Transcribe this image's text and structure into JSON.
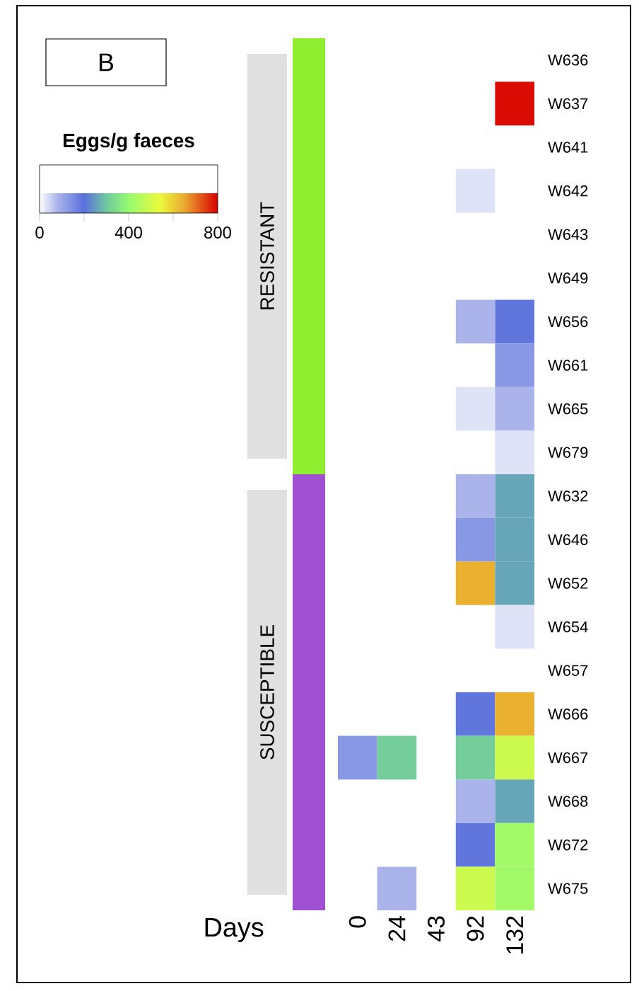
{
  "chart_data": {
    "type": "heatmap",
    "title": "B",
    "clabel": "Eggs/g faeces",
    "xlabel": "Days",
    "categories": [
      "0",
      "24",
      "43",
      "92",
      "132"
    ],
    "y_categories": [
      "W636",
      "W637",
      "W641",
      "W642",
      "W643",
      "W649",
      "W656",
      "W661",
      "W665",
      "W679",
      "W632",
      "W646",
      "W652",
      "W654",
      "W657",
      "W666",
      "W667",
      "W668",
      "W672",
      "W675"
    ],
    "cells": [
      [
        null,
        null,
        null,
        null,
        null
      ],
      [
        null,
        null,
        null,
        null,
        790
      ],
      [
        null,
        null,
        null,
        null,
        null
      ],
      [
        null,
        null,
        null,
        30,
        null
      ],
      [
        null,
        null,
        null,
        null,
        null
      ],
      [
        null,
        null,
        null,
        null,
        null
      ],
      [
        null,
        null,
        null,
        80,
        190
      ],
      [
        null,
        null,
        null,
        null,
        130
      ],
      [
        null,
        null,
        null,
        30,
        80
      ],
      [
        null,
        null,
        null,
        null,
        30
      ],
      [
        null,
        null,
        null,
        80,
        260
      ],
      [
        null,
        null,
        null,
        130,
        260
      ],
      [
        null,
        null,
        null,
        640,
        260
      ],
      [
        null,
        null,
        null,
        null,
        30
      ],
      [
        null,
        null,
        null,
        null,
        null
      ],
      [
        null,
        null,
        null,
        190,
        640
      ],
      [
        130,
        310,
        null,
        310,
        490
      ],
      [
        null,
        null,
        null,
        80,
        260
      ],
      [
        null,
        null,
        null,
        190,
        420
      ],
      [
        null,
        80,
        null,
        490,
        420
      ]
    ],
    "clim": [
      0,
      800
    ],
    "cticks": [
      0,
      {
        "value": 200,
        "label": null
      },
      400,
      {
        "value": 600,
        "label": null
      },
      800
    ],
    "annotations": [
      "RESISTANT",
      "SUSCEPTIBLE"
    ]
  }
}
